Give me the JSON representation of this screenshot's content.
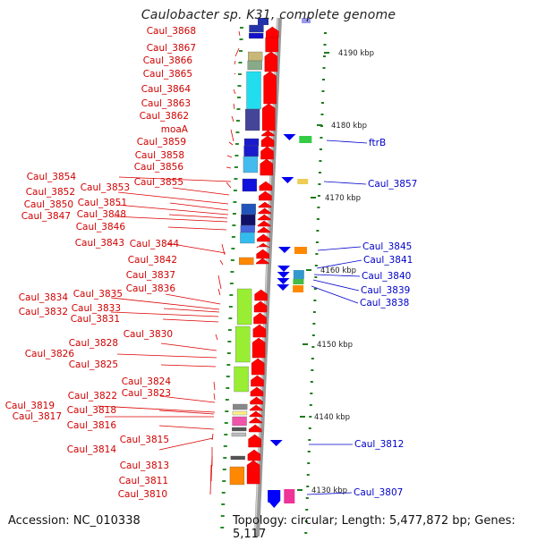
{
  "title": "Caulobacter sp. K31, complete genome",
  "accession": "Accession: NC_010338",
  "topology": "Topology: circular; Length: 5,477,872 bp; Genes: 5,117",
  "colors": {
    "forward_label": "#d00000",
    "reverse_label": "#0000c8",
    "forward_gene": "#ff0000",
    "reverse_gene": "#0000ff",
    "backbone": "#999999"
  },
  "scale_ticks": [
    "4190 kbp",
    "4180 kbp",
    "4170 kbp",
    "4160 kbp",
    "4150 kbp",
    "4140 kbp",
    "4130 kbp"
  ],
  "forward_labels": [
    "Caul_3868",
    "Caul_3867",
    "Caul_3866",
    "Caul_3865",
    "Caul_3864",
    "Caul_3863",
    "Caul_3862",
    "moaA",
    "Caul_3859",
    "Caul_3858",
    "Caul_3856",
    "Caul_3854",
    "Caul_3855",
    "Caul_3853",
    "Caul_3852",
    "Caul_3851",
    "Caul_3850",
    "Caul_3848",
    "Caul_3847",
    "Caul_3846",
    "Caul_3843",
    "Caul_3844",
    "Caul_3842",
    "Caul_3837",
    "Caul_3836",
    "Caul_3835",
    "Caul_3834",
    "Caul_3833",
    "Caul_3832",
    "Caul_3831",
    "Caul_3830",
    "Caul_3828",
    "Caul_3826",
    "Caul_3825",
    "Caul_3824",
    "Caul_3823",
    "Caul_3822",
    "Caul_3819",
    "Caul_3818",
    "Caul_3817",
    "Caul_3816",
    "Caul_3815",
    "Caul_3814",
    "Caul_3813",
    "Caul_3811",
    "Caul_3810"
  ],
  "reverse_labels": [
    "ftrB",
    "Caul_3857",
    "Caul_3845",
    "Caul_3841",
    "Caul_3840",
    "Caul_3839",
    "Caul_3838",
    "Caul_3812",
    "Caul_3807"
  ]
}
